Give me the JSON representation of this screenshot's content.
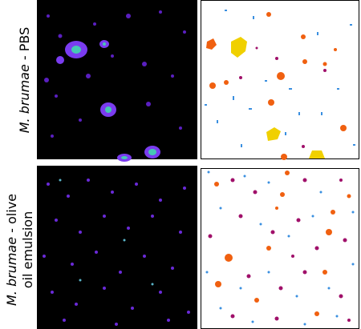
{
  "rows": [
    {
      "lines": [
        {
          "italic": "M. brumae",
          "rest": " - PBS"
        }
      ]
    },
    {
      "lines": [
        {
          "italic": "M. brumae",
          "rest": " - olive"
        },
        {
          "italic": "",
          "rest": "oil emulsion"
        }
      ]
    }
  ]
}
